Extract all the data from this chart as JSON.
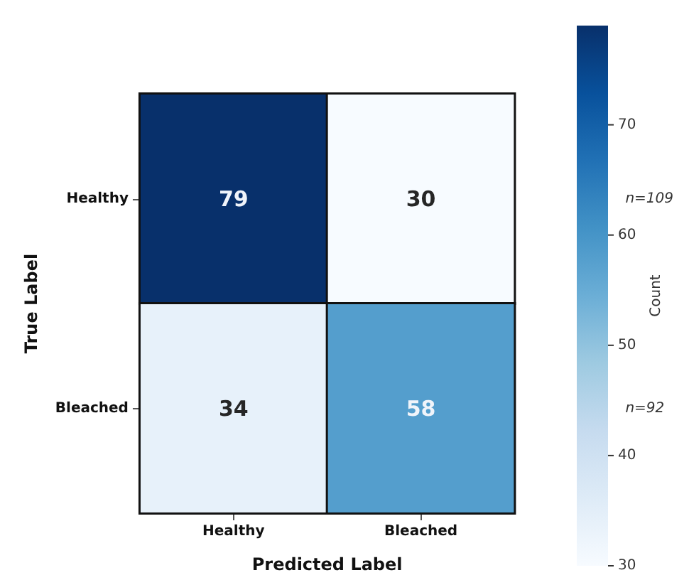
{
  "chart_data": {
    "type": "heatmap",
    "xlabel": "Predicted Label",
    "ylabel": "True Label",
    "clabel": "Count",
    "categories": [
      "Healthy",
      "Bleached"
    ],
    "y_categories": [
      "Healthy",
      "Bleached"
    ],
    "y2_categories": [
      "n=109",
      "n=92"
    ],
    "cells": [
      [
        79,
        30
      ],
      [
        34,
        58
      ]
    ],
    "data_labels": true,
    "clim": [
      30,
      79
    ],
    "cticks": [
      30,
      40,
      50,
      60,
      70
    ]
  }
}
